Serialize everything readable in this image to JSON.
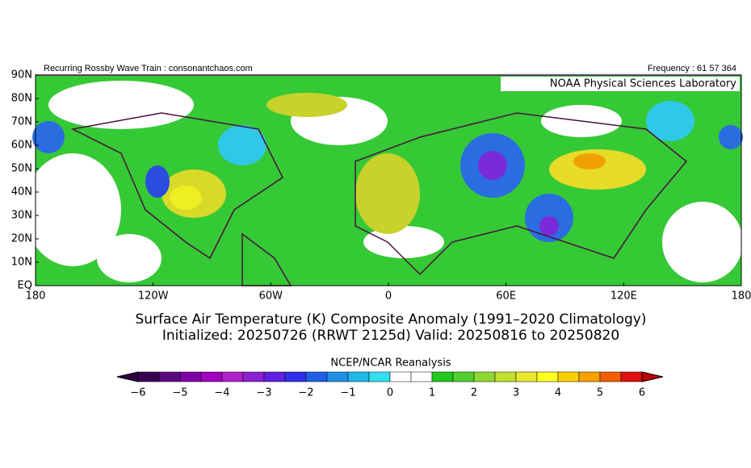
{
  "header": {
    "left": "Recurring Rossby Wave Train : consonantchaos.com",
    "right": "Frequency : 61 57 364",
    "lab": "NOAA Physical Sciences Laboratory"
  },
  "lat_labels": [
    "90N",
    "80N",
    "70N",
    "60N",
    "50N",
    "40N",
    "30N",
    "20N",
    "10N",
    "EQ"
  ],
  "lon_labels": [
    "180",
    "120W",
    "60W",
    "0",
    "60E",
    "120E",
    "180"
  ],
  "title": [
    "Surface Air Temperature (K) Composite Anomaly (1991–2020 Climatology)",
    "Initialized: 20250726 (RRWT 2125d) Valid: 20250816 to 20250820"
  ],
  "colorbar": {
    "label": "NCEP/NCAR Reanalysis",
    "ticks": [
      "−6",
      "−5",
      "−4",
      "−3",
      "−2",
      "−1",
      "0",
      "1",
      "2",
      "3",
      "4",
      "5",
      "6"
    ]
  }
}
